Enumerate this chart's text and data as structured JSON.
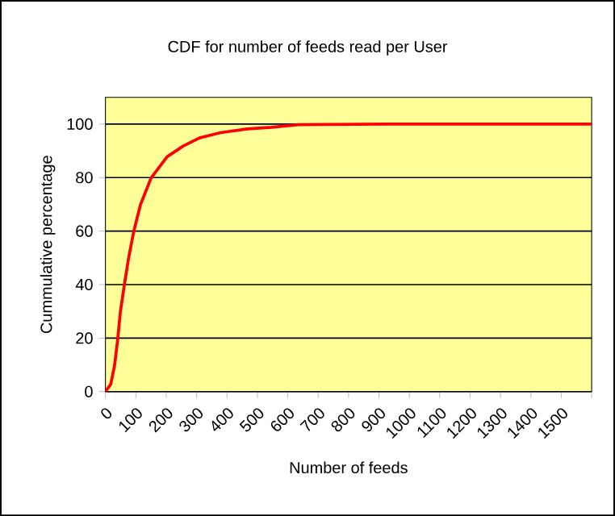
{
  "chart_data": {
    "type": "line",
    "title": "CDF for number of feeds read per User",
    "xlabel": "Number of feeds",
    "ylabel": "Cummulative percentage",
    "x": [
      0,
      17.6,
      30,
      40.6,
      49,
      62,
      76,
      93,
      115,
      150,
      203,
      256,
      309,
      379,
      467,
      547,
      635,
      926,
      1600
    ],
    "series": [
      {
        "color": "#ff0000",
        "values": [
          0,
          2.8,
          9.8,
          19.8,
          29.8,
          39.8,
          49.8,
          59.8,
          69.8,
          79.8,
          87.8,
          91.8,
          94.8,
          96.8,
          98.2,
          98.8,
          99.8,
          100,
          100
        ]
      }
    ],
    "xlim": [
      0,
      1600
    ],
    "ylim": [
      0,
      110
    ],
    "xticks": [
      0,
      100,
      200,
      300,
      400,
      500,
      600,
      700,
      800,
      900,
      1000,
      1100,
      1200,
      1300,
      1400,
      1500,
      {
        "value": 1600,
        "label": null
      }
    ],
    "yticks": [
      0,
      20,
      40,
      60,
      80,
      100
    ],
    "grid": "y",
    "marker": "none",
    "line_style": "solid"
  }
}
